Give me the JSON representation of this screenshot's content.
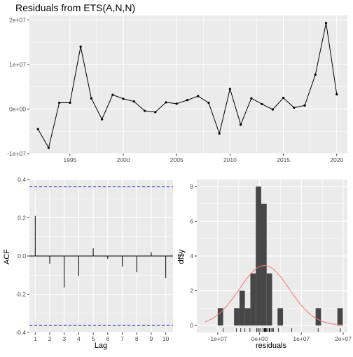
{
  "chart_data": [
    {
      "type": "line",
      "title": "Residuals from ETS(A,N,N)",
      "xlabel": "",
      "ylabel": "",
      "x_ticks": [
        1995,
        2000,
        2005,
        2010,
        2015,
        2020
      ],
      "y_ticks": [
        -10000000,
        0,
        10000000,
        20000000
      ],
      "y_tick_labels": [
        "-1e+07",
        "0e+00",
        "1e+07",
        "2e+07"
      ],
      "xlim": [
        1991.2,
        2021.0
      ],
      "ylim": [
        -10000000,
        21000000
      ],
      "grid": true,
      "x": [
        1992,
        1993,
        1994,
        1995,
        1996,
        1997,
        1998,
        1999,
        2000,
        2001,
        2002,
        2003,
        2004,
        2005,
        2006,
        2007,
        2008,
        2009,
        2010,
        2011,
        2012,
        2013,
        2014,
        2015,
        2016,
        2017,
        2018,
        2019,
        2020
      ],
      "y": [
        -4500000,
        -8700000,
        1400000,
        1400000,
        14000000,
        2400000,
        -2300000,
        3200000,
        2300000,
        1700000,
        -400000,
        -700000,
        1500000,
        1200000,
        2000000,
        2900000,
        1400000,
        -5500000,
        4500000,
        -3500000,
        2400000,
        1100000,
        -100000,
        2500000,
        300000,
        800000,
        7700000,
        19300000,
        3300000
      ],
      "colors": {
        "line": "#000000",
        "panel": "#ebebeb",
        "grid": "#ffffff"
      }
    },
    {
      "type": "bar",
      "subtype": "acf",
      "title": "",
      "xlabel": "Lag",
      "ylabel": "ACF",
      "categories": [
        1,
        2,
        3,
        4,
        5,
        6,
        7,
        8,
        9,
        10
      ],
      "values": [
        0.21,
        -0.04,
        -0.165,
        -0.105,
        0.04,
        -0.015,
        -0.055,
        -0.085,
        0.02,
        -0.115
      ],
      "x_tick_labels": [
        "1",
        "2",
        "3",
        "4",
        "5",
        "6",
        "7",
        "8",
        "9",
        "10"
      ],
      "y_ticks": [
        -0.4,
        -0.2,
        0.0,
        0.2,
        0.4
      ],
      "y_tick_labels": [
        "-0.4",
        "-0.2",
        "0.0",
        "0.2",
        "0.4"
      ],
      "xlim": [
        0.6,
        10.5
      ],
      "ylim": [
        -0.4,
        0.4
      ],
      "confidence_limit": 0.363,
      "grid": true,
      "colors": {
        "bar": "#000000",
        "ci": "#0000ff",
        "zero": "#000000",
        "panel": "#ebebeb",
        "grid": "#ffffff"
      }
    },
    {
      "type": "bar",
      "subtype": "histogram",
      "title": "",
      "xlabel": "residuals",
      "ylabel": "df$y",
      "bin_edges": [
        -10000000,
        -8700000,
        -7400000,
        -6100000,
        -4800000,
        -3500000,
        -2200000,
        -900000,
        400000,
        1700000,
        3000000,
        4300000,
        5600000,
        6900000,
        8200000,
        9500000,
        10800000,
        12100000,
        13400000,
        14700000,
        16000000,
        17300000,
        18600000,
        19900000
      ],
      "counts": [
        1,
        0,
        0,
        1,
        2,
        1,
        3,
        8,
        7,
        3,
        0,
        1,
        0,
        0,
        0,
        0,
        0,
        0,
        1,
        0,
        0,
        0,
        1
      ],
      "normal_curve": {
        "mean": 1150000,
        "sd": 6000000,
        "peak": 3.45
      },
      "rug": [
        -8700000,
        -5500000,
        -4500000,
        -3500000,
        -2300000,
        -700000,
        -400000,
        -100000,
        300000,
        800000,
        1100000,
        1200000,
        1400000,
        1400000,
        1400000,
        1500000,
        1700000,
        2000000,
        2300000,
        2400000,
        2400000,
        2500000,
        2900000,
        3200000,
        3300000,
        4500000,
        7700000,
        14000000,
        19300000
      ],
      "x_ticks": [
        -10000000,
        0,
        10000000,
        20000000
      ],
      "x_tick_labels": [
        "-1e+07",
        "0e+00",
        "1e+07",
        "2e+07"
      ],
      "y_ticks": [
        0,
        2,
        4,
        6,
        8
      ],
      "y_tick_labels": [
        "0",
        "2",
        "4",
        "6",
        "8"
      ],
      "xlim": [
        -15000000,
        21000000
      ],
      "ylim": [
        -0.4,
        8.4
      ],
      "grid": true,
      "colors": {
        "bar": "#474747",
        "curve": "#f8766d",
        "rug": "#000000",
        "panel": "#ebebeb",
        "grid": "#ffffff"
      }
    }
  ]
}
